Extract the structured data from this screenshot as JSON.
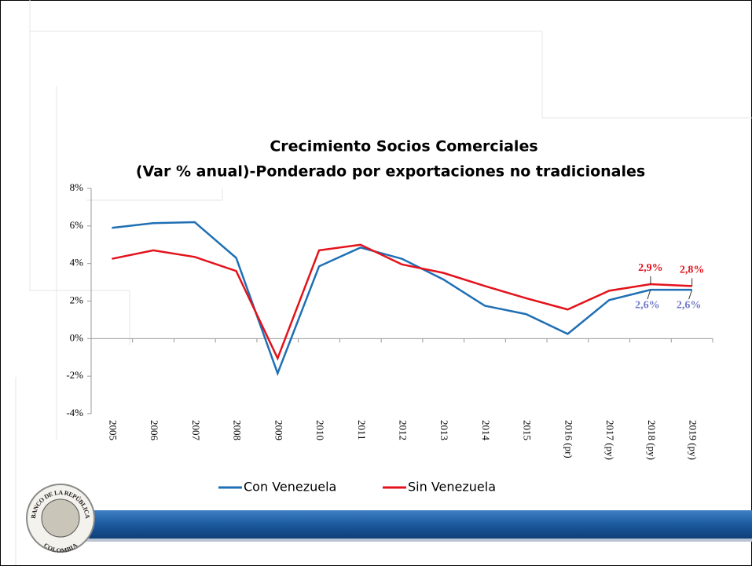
{
  "chart_data": {
    "type": "line",
    "title": "Crecimiento Socios Comerciales",
    "subtitle": "(Var % anual)-Ponderado por exportaciones no tradicionales",
    "categories": [
      "2005",
      "2006",
      "2007",
      "2008",
      "2009",
      "2010",
      "2011",
      "2012",
      "2013",
      "2014",
      "2015",
      "2016 (pr)",
      "2017 (py)",
      "2018 (py)",
      "2019 (py)"
    ],
    "series": [
      {
        "name": "Con Venezuela",
        "color": "#1f6fb4",
        "label_color": "#7279c8",
        "values": [
          5.9,
          6.15,
          6.2,
          4.3,
          -1.85,
          3.85,
          4.85,
          4.25,
          3.15,
          1.75,
          1.3,
          0.25,
          2.05,
          2.6,
          2.6
        ],
        "value_labels": [
          null,
          null,
          null,
          null,
          null,
          null,
          null,
          null,
          null,
          null,
          null,
          null,
          null,
          "2,6%",
          "2,6%"
        ]
      },
      {
        "name": "Sin Venezuela",
        "color": "#e3121b",
        "label_color": "#e3121b",
        "values": [
          4.25,
          4.7,
          4.35,
          3.6,
          -1.05,
          4.7,
          5.0,
          3.95,
          3.5,
          2.8,
          2.15,
          1.55,
          2.55,
          2.9,
          2.8
        ],
        "value_labels": [
          null,
          null,
          null,
          null,
          null,
          null,
          null,
          null,
          null,
          null,
          null,
          null,
          null,
          "2,9%",
          "2,8%"
        ]
      }
    ],
    "ylim": [
      -4,
      8
    ],
    "yticks": [
      {
        "value": -4,
        "label": "-4%"
      },
      {
        "value": -2,
        "label": "-2%"
      },
      {
        "value": 0,
        "label": "0%"
      },
      {
        "value": 2,
        "label": "2%"
      },
      {
        "value": 4,
        "label": "4%"
      },
      {
        "value": 6,
        "label": "6%"
      },
      {
        "value": 8,
        "label": "8%"
      }
    ],
    "legend": "bottom"
  },
  "logo": {
    "top": "BANCO DE LA REPÚBLICA",
    "bottom": "COLOMBIA"
  }
}
